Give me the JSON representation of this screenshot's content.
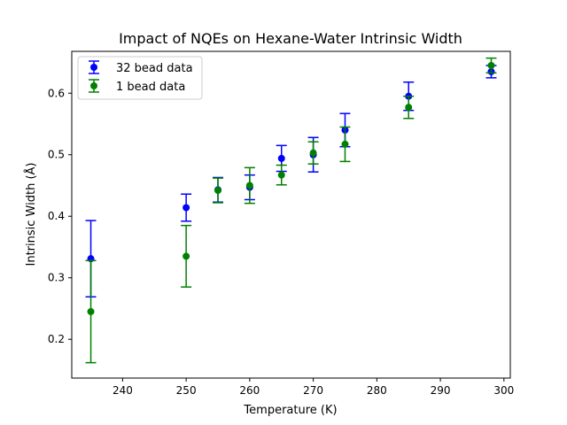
{
  "chart_data": {
    "type": "scatter",
    "title": "Impact of NQEs on Hexane-Water Intrinsic Width",
    "xlabel": "Temperature (K)",
    "ylabel": "Intrinsic Width (Å)",
    "xlim": [
      232,
      301
    ],
    "ylim": [
      0.137,
      0.668
    ],
    "xticks": [
      240,
      250,
      260,
      270,
      280,
      290,
      300
    ],
    "yticks": [
      0.2,
      0.3,
      0.4,
      0.5,
      0.6
    ],
    "legend_position": "top-left",
    "grid": false,
    "series": [
      {
        "name": "32 bead data",
        "color": "#0000ff",
        "x": [
          235,
          250,
          255,
          260,
          265,
          270,
          275,
          285,
          298
        ],
        "y": [
          0.331,
          0.414,
          0.443,
          0.447,
          0.494,
          0.5,
          0.54,
          0.595,
          0.635
        ],
        "err": [
          0.062,
          0.022,
          0.02,
          0.02,
          0.021,
          0.028,
          0.027,
          0.023,
          0.01
        ]
      },
      {
        "name": "1 bead data",
        "color": "#008000",
        "x": [
          235,
          250,
          255,
          260,
          265,
          270,
          275,
          285,
          298
        ],
        "y": [
          0.245,
          0.335,
          0.442,
          0.45,
          0.467,
          0.503,
          0.517,
          0.577,
          0.645
        ],
        "err": [
          0.083,
          0.05,
          0.02,
          0.029,
          0.016,
          0.018,
          0.028,
          0.018,
          0.012
        ]
      }
    ]
  }
}
